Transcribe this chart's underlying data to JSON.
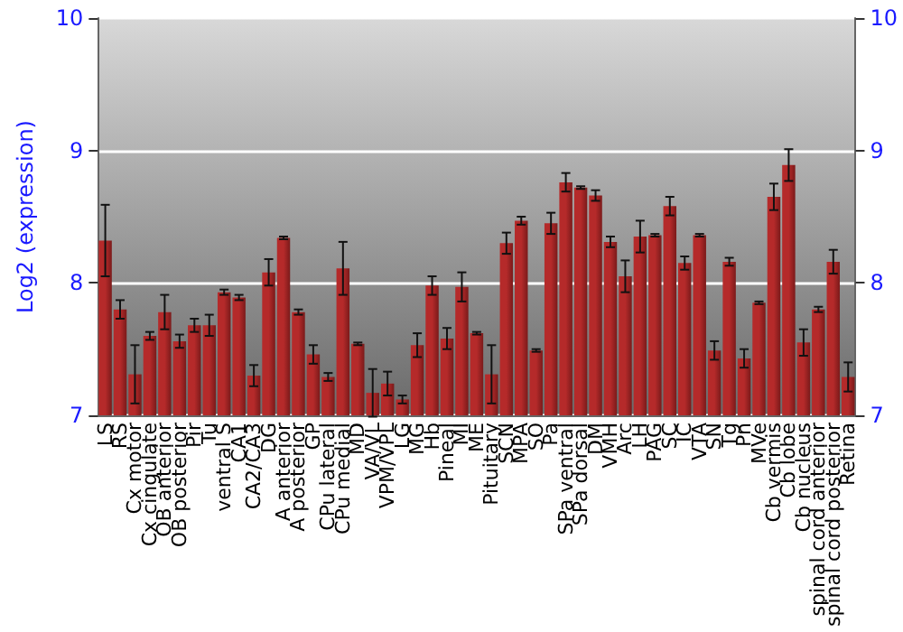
{
  "chart_data": {
    "type": "bar",
    "ylabel": "Log2 (expression)",
    "categories": [
      "LS",
      "RS",
      "Cx motor",
      "Cx cingulate",
      "OB anterior",
      "OB posterior",
      "Pir",
      "Tu",
      "ventral S",
      "CA1",
      "CA2/CA3",
      "DG",
      "A anterior",
      "A posterior",
      "GP",
      "CPu lateral",
      "CPu medial",
      "MD",
      "VA/VL",
      "VPM/VPL",
      "LG",
      "MG",
      "Hb",
      "Pineal",
      "MI",
      "ME",
      "Pituitary",
      "SCN",
      "MPA",
      "SO",
      "Pa",
      "SPa ventral",
      "SPa dorsal",
      "DM",
      "VMH",
      "Arc",
      "LH",
      "PAG",
      "SC",
      "IC",
      "VTA",
      "SN",
      "Tg",
      "Pn",
      "MVe",
      "Cb vermis",
      "Cb lobe",
      "Cb nucleus",
      "spinal cord anterior",
      "spinal cord posterior",
      "Retina"
    ],
    "series": [
      {
        "color": "#b52a2a",
        "values": [
          8.32,
          7.8,
          7.31,
          7.6,
          7.78,
          7.56,
          7.68,
          7.68,
          7.93,
          7.89,
          7.3,
          8.08,
          8.34,
          7.78,
          7.46,
          7.29,
          8.11,
          7.54,
          7.17,
          7.24,
          7.12,
          7.53,
          7.98,
          7.58,
          7.97,
          7.62,
          7.31,
          8.3,
          8.47,
          7.49,
          8.45,
          8.76,
          8.72,
          8.66,
          8.31,
          8.05,
          8.35,
          8.36,
          8.58,
          8.15,
          8.36,
          7.49,
          8.16,
          7.43,
          7.85,
          8.65,
          8.89,
          7.55,
          7.8,
          8.16,
          7.29
        ],
        "errors": [
          0.27,
          0.07,
          0.22,
          0.03,
          0.13,
          0.05,
          0.05,
          0.08,
          0.02,
          0.02,
          0.08,
          0.1,
          0.01,
          0.02,
          0.07,
          0.03,
          0.2,
          0.01,
          0.18,
          0.09,
          0.03,
          0.09,
          0.07,
          0.08,
          0.11,
          0.01,
          0.22,
          0.08,
          0.03,
          0.01,
          0.08,
          0.07,
          0.01,
          0.04,
          0.04,
          0.12,
          0.12,
          0.01,
          0.07,
          0.05,
          0.01,
          0.07,
          0.03,
          0.07,
          0.01,
          0.1,
          0.12,
          0.1,
          0.02,
          0.09,
          0.11
        ]
      }
    ],
    "ylim": [
      7,
      10
    ],
    "yticks": [
      7,
      8,
      9,
      10
    ],
    "y2lim": [
      7,
      10
    ],
    "y2ticks": [
      7,
      8,
      9,
      10
    ],
    "grid": "y"
  }
}
